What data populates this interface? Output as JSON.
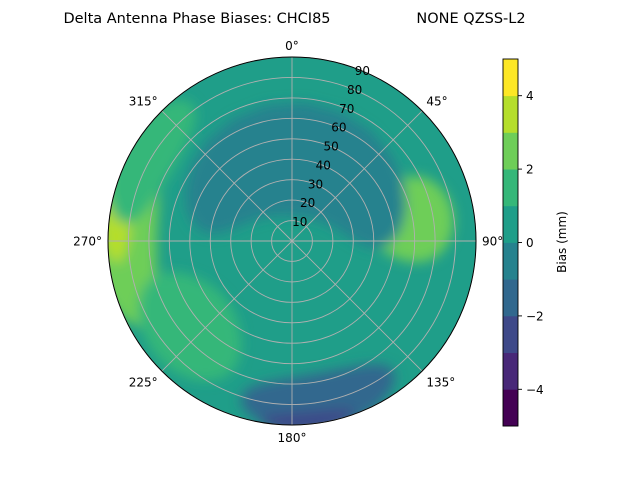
{
  "chart_data": {
    "type": "polar-contour",
    "title": "Delta Antenna Phase Biases: CHCI85",
    "subtitle": "NONE QZSS-L2",
    "angular_ticks": [
      {
        "deg": 0,
        "label": "0°"
      },
      {
        "deg": 45,
        "label": "45°"
      },
      {
        "deg": 90,
        "label": "90°"
      },
      {
        "deg": 135,
        "label": "135°"
      },
      {
        "deg": 180,
        "label": "180°"
      },
      {
        "deg": 225,
        "label": "225°"
      },
      {
        "deg": 270,
        "label": "270°"
      },
      {
        "deg": 315,
        "label": "315°"
      }
    ],
    "radial_ticks": [
      "10",
      "20",
      "30",
      "40",
      "50",
      "60",
      "70",
      "80",
      "90"
    ],
    "radial_values": [
      10,
      20,
      30,
      40,
      50,
      60,
      70,
      80,
      90
    ],
    "radial_range": [
      0,
      90
    ],
    "background_bias_mm": 0.5,
    "regions": [
      {
        "name": "east-positive",
        "level": 2.5,
        "az": 80,
        "r": 58,
        "sa": 20,
        "sr": 22
      },
      {
        "name": "west-edge",
        "level": 2.5,
        "az": 272,
        "r": 82,
        "sa": 32,
        "sr": 16
      },
      {
        "name": "west-peak",
        "level": 3.5,
        "az": 277,
        "r": 86,
        "sa": 14,
        "sr": 7
      },
      {
        "name": "southwest",
        "level": 1.5,
        "az": 230,
        "r": 65,
        "sa": 26,
        "sr": 22
      },
      {
        "name": "northwest",
        "level": 1.5,
        "az": 300,
        "r": 82,
        "sa": 24,
        "sr": 14
      },
      {
        "name": "north",
        "level": -0.5,
        "az": 5,
        "r": 40,
        "sa": 90,
        "sr": 28
      },
      {
        "name": "south-negative",
        "level": -1.5,
        "az": 170,
        "r": 80,
        "sa": 28,
        "sr": 14
      },
      {
        "name": "south-edge",
        "level": -2.5,
        "az": 175,
        "r": 89,
        "sa": 15,
        "sr": 5
      }
    ],
    "colorbar": {
      "label": "Bias (mm)",
      "levels": [
        -5,
        -4,
        -3,
        -2,
        -1,
        0,
        1,
        2,
        3,
        4,
        5
      ],
      "tick_values": [
        -4,
        -2,
        0,
        2,
        4
      ],
      "tick_labels": [
        "−4",
        "−2",
        "0",
        "2",
        "4"
      ],
      "colors": [
        "#440154",
        "#482878",
        "#3e4989",
        "#31688e",
        "#26828e",
        "#1f9e89",
        "#35b779",
        "#6ece58",
        "#b5de2b",
        "#fde725"
      ]
    },
    "grid": true
  }
}
